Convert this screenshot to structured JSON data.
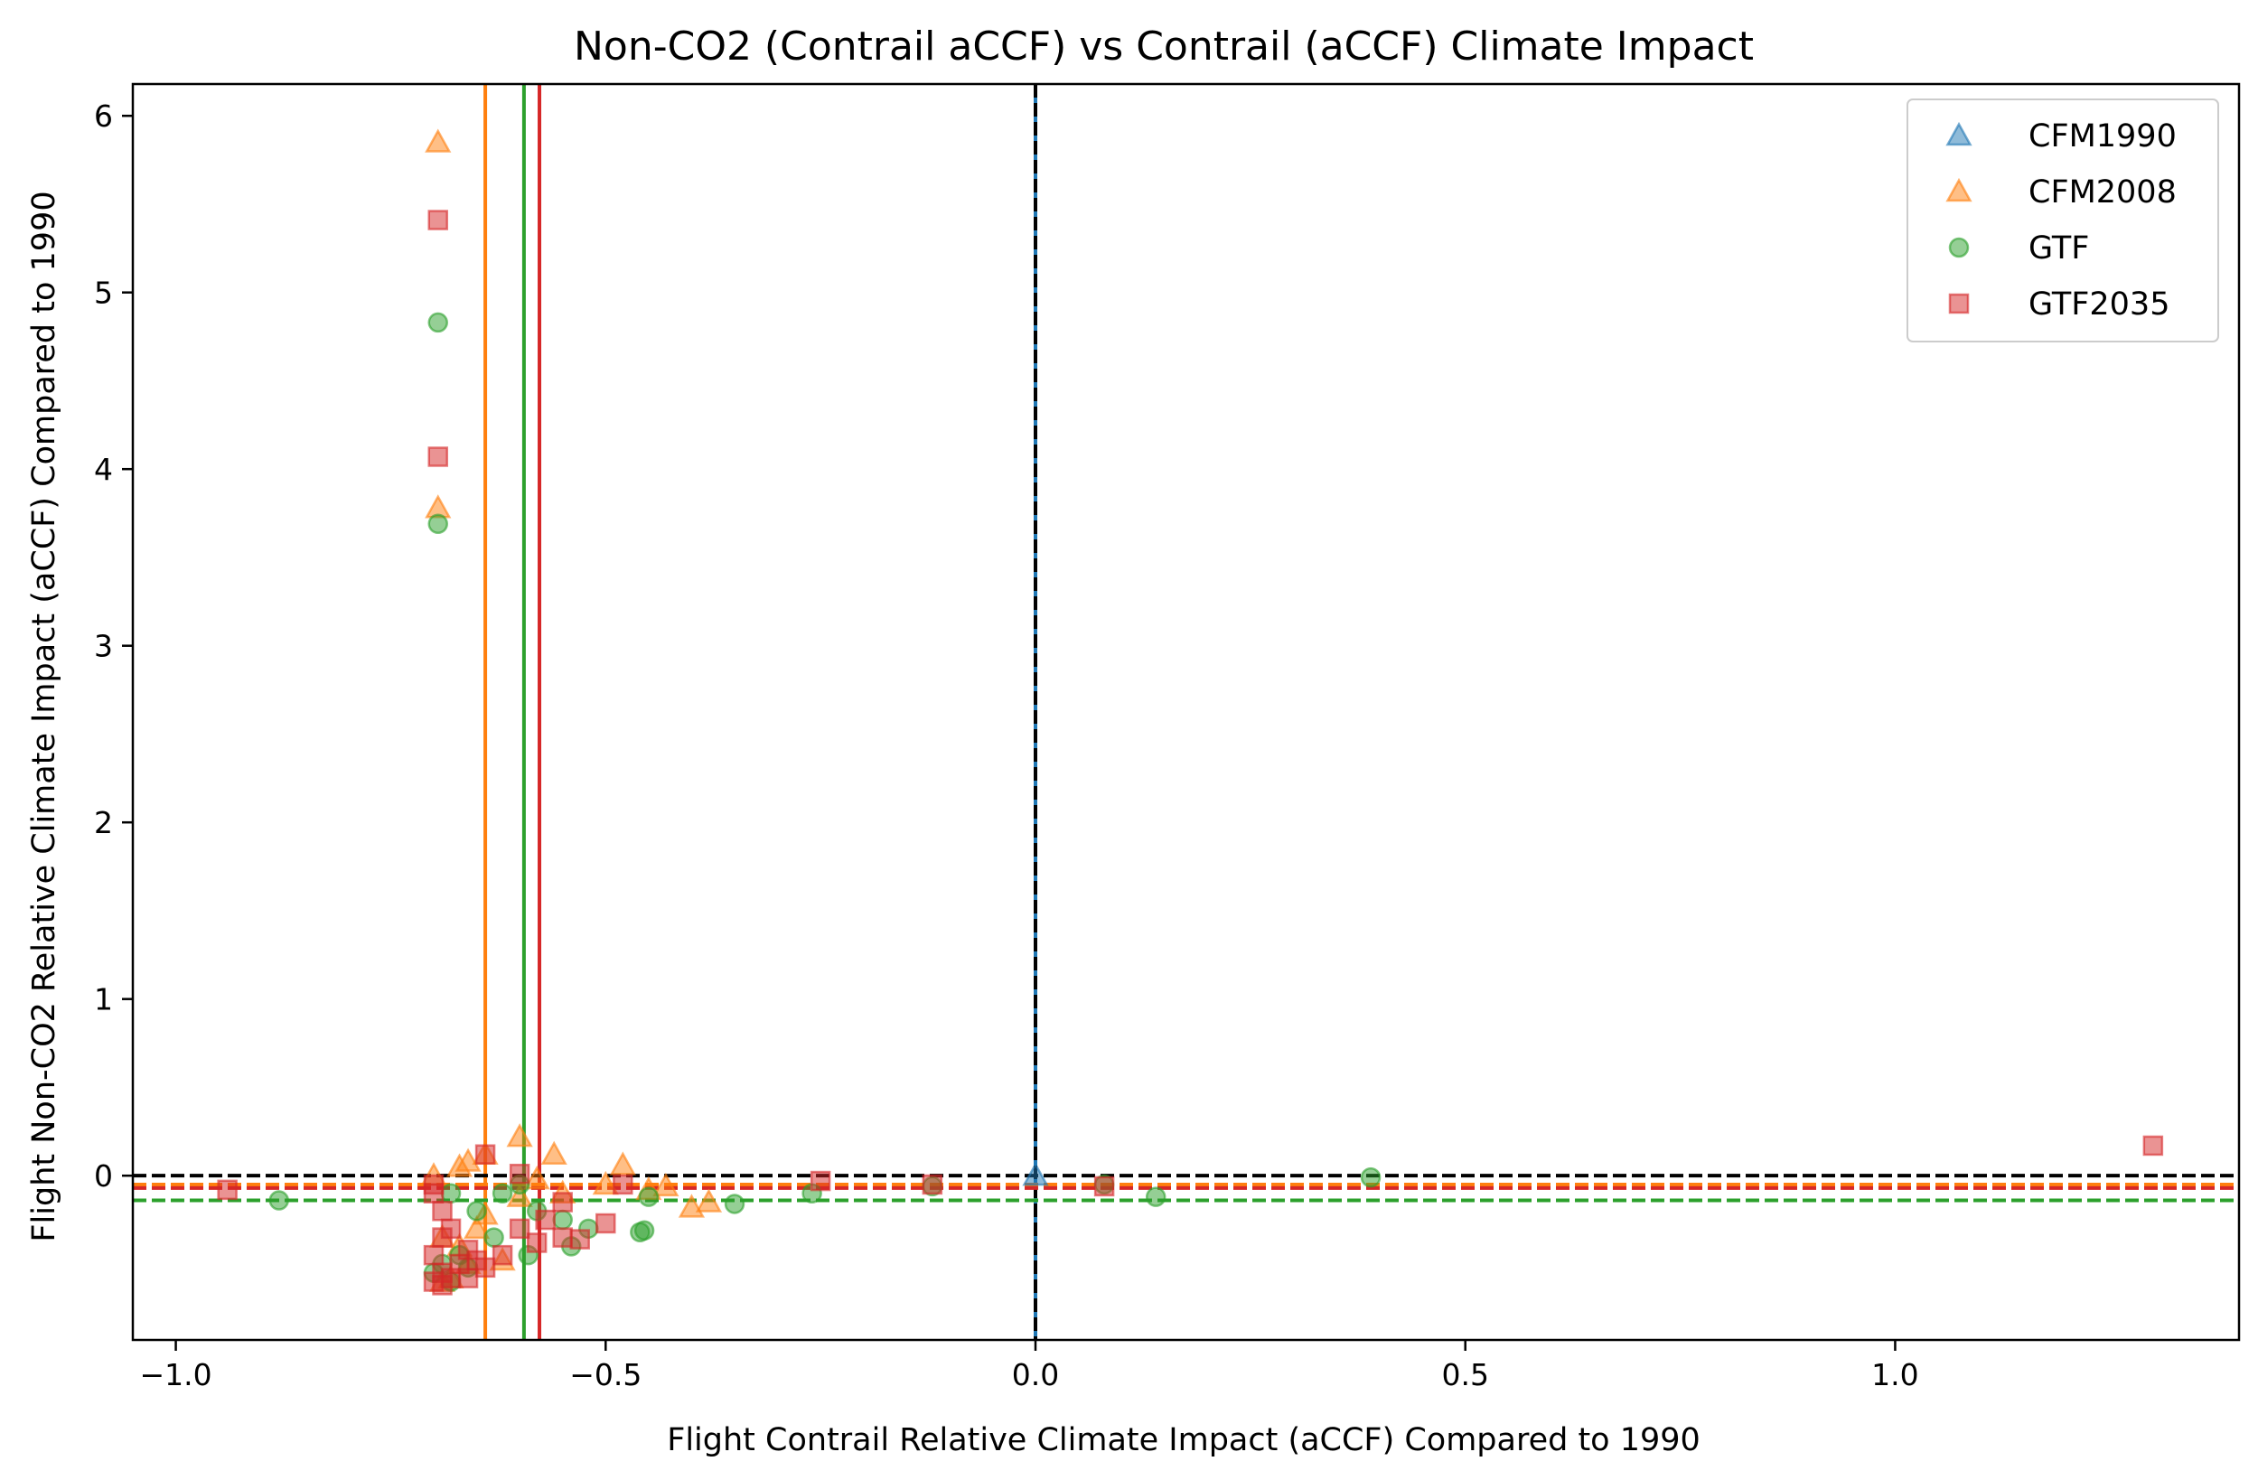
{
  "chart_data": {
    "type": "scatter",
    "title": "Non-CO2 (Contrail aCCF) vs Contrail (aCCF) Climate Impact",
    "xlabel": "Flight Contrail Relative Climate Impact (aCCF) Compared to 1990",
    "ylabel": "Flight Non-CO2 Relative Climate Impact (aCCF) Compared to 1990",
    "xlim": [
      -1.05,
      1.4
    ],
    "ylim": [
      -0.93,
      6.18
    ],
    "x_ticks": [
      -1.0,
      -0.5,
      0.0,
      0.5,
      1.0
    ],
    "x_tick_labels": [
      "−1.0",
      "−0.5",
      "0.0",
      "0.5",
      "1.0"
    ],
    "y_ticks": [
      0,
      1,
      2,
      3,
      4,
      5,
      6
    ],
    "y_tick_labels": [
      "0",
      "1",
      "2",
      "3",
      "4",
      "5",
      "6"
    ],
    "grid": false,
    "legend_position": "top-right",
    "series": [
      {
        "name": "CFM1990",
        "marker": "triangle",
        "color": "#1f77b4",
        "points": [
          [
            0.0,
            0.0
          ]
        ]
      },
      {
        "name": "CFM2008",
        "marker": "triangle",
        "color": "#ff7f0e",
        "points": [
          [
            -0.695,
            5.85
          ],
          [
            -0.695,
            3.78
          ],
          [
            -0.67,
            0.05
          ],
          [
            -0.66,
            0.08
          ],
          [
            -0.64,
            0.12
          ],
          [
            -0.6,
            0.22
          ],
          [
            -0.56,
            0.12
          ],
          [
            -0.48,
            0.06
          ],
          [
            -0.43,
            -0.06
          ],
          [
            -0.4,
            -0.18
          ],
          [
            -0.38,
            -0.15
          ],
          [
            -0.64,
            -0.22
          ],
          [
            -0.6,
            -0.12
          ],
          [
            -0.69,
            -0.6
          ],
          [
            -0.68,
            -0.58
          ],
          [
            -0.66,
            -0.5
          ],
          [
            -0.62,
            -0.48
          ],
          [
            -0.69,
            -0.35
          ],
          [
            -0.67,
            -0.4
          ],
          [
            -0.65,
            -0.3
          ],
          [
            -0.7,
            0.0
          ],
          [
            -0.58,
            -0.02
          ],
          [
            -0.55,
            -0.1
          ],
          [
            -0.5,
            -0.05
          ],
          [
            -0.45,
            -0.08
          ]
        ]
      },
      {
        "name": "GTF",
        "marker": "circle",
        "color": "#2ca02c",
        "points": [
          [
            -0.695,
            4.83
          ],
          [
            -0.695,
            3.69
          ],
          [
            -0.88,
            -0.14
          ],
          [
            -0.35,
            -0.16
          ],
          [
            -0.26,
            -0.1
          ],
          [
            -0.12,
            -0.06
          ],
          [
            0.08,
            -0.05
          ],
          [
            0.14,
            -0.12
          ],
          [
            0.39,
            -0.01
          ],
          [
            -0.46,
            -0.32
          ],
          [
            -0.455,
            -0.31
          ],
          [
            -0.45,
            -0.12
          ],
          [
            -0.54,
            -0.4
          ],
          [
            -0.58,
            -0.2
          ],
          [
            -0.6,
            -0.05
          ],
          [
            -0.62,
            -0.1
          ],
          [
            -0.66,
            -0.52
          ],
          [
            -0.68,
            -0.6
          ],
          [
            -0.69,
            -0.5
          ],
          [
            -0.63,
            -0.35
          ],
          [
            -0.59,
            -0.45
          ],
          [
            -0.55,
            -0.25
          ],
          [
            -0.52,
            -0.3
          ],
          [
            -0.67,
            -0.45
          ],
          [
            -0.7,
            -0.55
          ],
          [
            -0.65,
            -0.2
          ],
          [
            -0.68,
            -0.1
          ]
        ]
      },
      {
        "name": "GTF2035",
        "marker": "square",
        "color": "#d62728",
        "points": [
          [
            -0.695,
            5.41
          ],
          [
            -0.695,
            4.07
          ],
          [
            1.3,
            0.17
          ],
          [
            -0.64,
            0.12
          ],
          [
            -0.6,
            0.01
          ],
          [
            -0.5,
            -0.27
          ],
          [
            -0.48,
            -0.05
          ],
          [
            -0.25,
            -0.03
          ],
          [
            -0.12,
            -0.05
          ],
          [
            0.08,
            -0.06
          ],
          [
            -0.94,
            -0.08
          ],
          [
            -0.7,
            -0.05
          ],
          [
            -0.69,
            -0.2
          ],
          [
            -0.69,
            -0.35
          ],
          [
            -0.7,
            -0.45
          ],
          [
            -0.69,
            -0.55
          ],
          [
            -0.68,
            -0.58
          ],
          [
            -0.67,
            -0.5
          ],
          [
            -0.66,
            -0.42
          ],
          [
            -0.65,
            -0.48
          ],
          [
            -0.62,
            -0.45
          ],
          [
            -0.58,
            -0.38
          ],
          [
            -0.55,
            -0.35
          ],
          [
            -0.53,
            -0.36
          ],
          [
            -0.6,
            -0.3
          ],
          [
            -0.57,
            -0.25
          ],
          [
            -0.55,
            -0.15
          ],
          [
            -0.7,
            -0.1
          ],
          [
            -0.68,
            -0.3
          ],
          [
            -0.7,
            -0.6
          ],
          [
            -0.69,
            -0.62
          ],
          [
            -0.66,
            -0.58
          ],
          [
            -0.64,
            -0.52
          ]
        ]
      }
    ],
    "reference_lines": [
      {
        "orientation": "vertical",
        "value": 0.0,
        "color": "#1f77b4",
        "style": "solid"
      },
      {
        "orientation": "vertical",
        "value": 0.0,
        "color": "#000000",
        "style": "dashed"
      },
      {
        "orientation": "vertical",
        "value": -0.64,
        "color": "#ff7f0e",
        "style": "solid"
      },
      {
        "orientation": "vertical",
        "value": -0.595,
        "color": "#2ca02c",
        "style": "solid"
      },
      {
        "orientation": "vertical",
        "value": -0.577,
        "color": "#d62728",
        "style": "solid"
      },
      {
        "orientation": "horizontal",
        "value": 0.0,
        "color": "#000000",
        "style": "dashed"
      },
      {
        "orientation": "horizontal",
        "value": -0.05,
        "color": "#ff7f0e",
        "style": "dashed"
      },
      {
        "orientation": "horizontal",
        "value": -0.07,
        "color": "#d62728",
        "style": "dashed"
      },
      {
        "orientation": "horizontal",
        "value": -0.14,
        "color": "#2ca02c",
        "style": "dashed"
      }
    ]
  }
}
